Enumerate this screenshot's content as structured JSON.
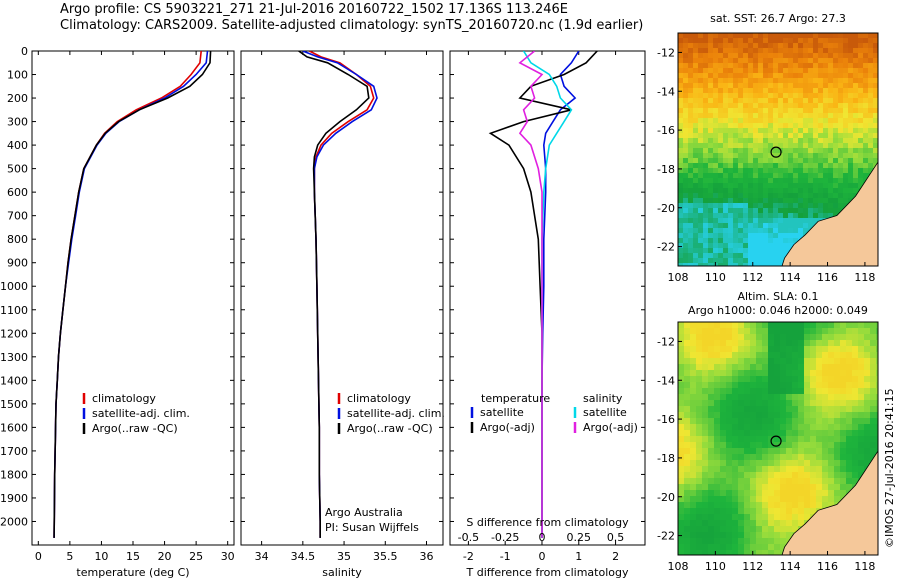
{
  "header": {
    "line1": "Argo profile: CS 5903221_271 21-Jul-2016 20160722_1502 17.136S 113.246E",
    "line2": "Climatology: CARS2009. Satellite-adjusted climatology: synTS_20160720.nc (1.9d earlier)"
  },
  "credit": {
    "ref": "Argo Australia",
    "pi": "PI: Susan Wijffels",
    "stamp": "©IMOS 27-Jul-2016 20:41:15"
  },
  "colors": {
    "climatology": "#e00000",
    "satellite": "#0010e0",
    "argo": "#000000",
    "sat_salinity": "#00d8e8",
    "argo_salinity": "#e020e0",
    "land": "#f5c89a"
  },
  "chart_data": [
    {
      "type": "line",
      "panel": "temperature",
      "xlabel": "temperature (deg C)",
      "xlim": [
        -1,
        31
      ],
      "xticks": [
        0,
        5,
        10,
        15,
        20,
        25,
        30
      ],
      "ylim": [
        2100,
        0
      ],
      "yticks": [
        0,
        100,
        200,
        300,
        400,
        500,
        600,
        700,
        800,
        900,
        1000,
        1100,
        1200,
        1300,
        1400,
        1500,
        1600,
        1700,
        1800,
        1900,
        2000
      ],
      "legend": [
        "climatology",
        "satellite-adj. clim.",
        "Argo(..raw -QC)"
      ],
      "series": [
        {
          "name": "climatology",
          "color": "#e00000",
          "x": [
            25.8,
            25.6,
            24.2,
            22.5,
            19.5,
            15.5,
            12.5,
            10.5,
            9.2,
            8.2,
            7.2,
            6.4,
            5.8,
            5.2,
            4.7,
            4.3,
            3.9,
            3.5,
            3.2,
            3.0,
            2.8,
            2.6,
            2.5
          ],
          "y": [
            0,
            50,
            100,
            150,
            200,
            250,
            300,
            350,
            400,
            450,
            500,
            600,
            700,
            800,
            900,
            1000,
            1100,
            1200,
            1300,
            1400,
            1500,
            1800,
            2070
          ]
        },
        {
          "name": "satellite-adj. clim.",
          "color": "#0010e0",
          "x": [
            26.8,
            26.6,
            25.0,
            23.0,
            20.0,
            16.0,
            12.8,
            10.7,
            9.3,
            8.3,
            7.3,
            6.5,
            5.9,
            5.3,
            4.8,
            4.3,
            3.9,
            3.5,
            3.2,
            3.0,
            2.8,
            2.6,
            2.5
          ],
          "y": [
            0,
            50,
            100,
            150,
            200,
            250,
            300,
            350,
            400,
            450,
            500,
            600,
            700,
            800,
            900,
            1000,
            1100,
            1200,
            1300,
            1400,
            1500,
            1800,
            2070
          ]
        },
        {
          "name": "Argo(..raw -QC)",
          "color": "#000000",
          "x": [
            27.3,
            27.2,
            26.0,
            24.0,
            20.5,
            16.0,
            12.7,
            10.6,
            9.2,
            8.2,
            7.2,
            6.4,
            5.8,
            5.2,
            4.7,
            4.3,
            3.9,
            3.5,
            3.2,
            3.0,
            2.8,
            2.6,
            2.5
          ],
          "y": [
            0,
            50,
            100,
            150,
            200,
            250,
            300,
            350,
            400,
            450,
            500,
            600,
            700,
            800,
            900,
            1000,
            1100,
            1200,
            1300,
            1400,
            1500,
            1800,
            2070
          ]
        }
      ]
    },
    {
      "type": "line",
      "panel": "salinity",
      "xlabel": "salinity",
      "xlim": [
        33.75,
        36.2
      ],
      "xticks": [
        34,
        34.5,
        35,
        35.5,
        36
      ],
      "ylim": [
        2100,
        0
      ],
      "legend": [
        "climatology",
        "satellite-adj. clim.",
        "Argo(..raw -QC)"
      ],
      "series": [
        {
          "name": "climatology",
          "color": "#e00000",
          "x": [
            34.58,
            34.72,
            34.95,
            35.15,
            35.32,
            35.36,
            35.28,
            35.05,
            34.85,
            34.72,
            34.66,
            34.64,
            34.64,
            34.65,
            34.66,
            34.67,
            34.68,
            34.69,
            34.7,
            34.7,
            34.71,
            34.71
          ],
          "y": [
            0,
            25,
            50,
            100,
            150,
            200,
            250,
            300,
            350,
            400,
            450,
            500,
            600,
            700,
            800,
            1000,
            1200,
            1400,
            1600,
            1800,
            2000,
            2070
          ]
        },
        {
          "name": "satellite-adj. clim.",
          "color": "#0010e0",
          "x": [
            34.5,
            34.68,
            34.92,
            35.15,
            35.36,
            35.4,
            35.33,
            35.1,
            34.9,
            34.75,
            34.67,
            34.64,
            34.64,
            34.65,
            34.66,
            34.67,
            34.68,
            34.69,
            34.7,
            34.7,
            34.71,
            34.71
          ],
          "y": [
            0,
            25,
            50,
            100,
            150,
            200,
            250,
            300,
            350,
            400,
            450,
            500,
            600,
            700,
            800,
            1000,
            1200,
            1400,
            1600,
            1800,
            2000,
            2070
          ]
        },
        {
          "name": "Argo(..raw -QC)",
          "color": "#000000",
          "x": [
            34.45,
            34.55,
            34.8,
            35.05,
            35.28,
            35.3,
            35.15,
            34.95,
            34.78,
            34.68,
            34.64,
            34.63,
            34.64,
            34.65,
            34.66,
            34.67,
            34.68,
            34.69,
            34.7,
            34.7,
            34.71,
            34.71
          ],
          "y": [
            0,
            25,
            50,
            100,
            150,
            200,
            250,
            300,
            350,
            400,
            450,
            500,
            600,
            700,
            800,
            1000,
            1200,
            1400,
            1600,
            1800,
            2000,
            2070
          ]
        }
      ]
    },
    {
      "type": "line",
      "panel": "difference",
      "xlabel": "T difference from climatology",
      "xlabel2": "S difference from climatology",
      "xlim": [
        -2.5,
        2.8
      ],
      "xticks": [
        -2,
        -1,
        0,
        1,
        2
      ],
      "sticks": [
        {
          "label": "-0.5",
          "value": -2
        },
        {
          "label": "-0.25",
          "value": -1
        },
        {
          "label": "0",
          "value": 0
        },
        {
          "label": "0.25",
          "value": 1
        },
        {
          "label": "0.5",
          "value": 2
        }
      ],
      "ylim": [
        2100,
        0
      ],
      "legend_temp_title": "temperature",
      "legend_sal_title": "salinity",
      "legend_temp": [
        "satellite",
        "Argo(-adj)"
      ],
      "legend_sal": [
        "satellite",
        "Argo(-adj)"
      ],
      "series": [
        {
          "name": "temperature satellite",
          "color": "#0010e0",
          "x": [
            1.0,
            0.8,
            0.5,
            0.6,
            0.9,
            0.5,
            0.3,
            0.1,
            0.05,
            0.1,
            0.1,
            0.05,
            0.05,
            0.02,
            0.0,
            0.0,
            0.0,
            0.0
          ],
          "y": [
            0,
            50,
            100,
            150,
            200,
            250,
            300,
            350,
            400,
            500,
            600,
            800,
            1000,
            1200,
            1400,
            1600,
            1800,
            2070
          ]
        },
        {
          "name": "temperature Argo(-adj)",
          "color": "#000000",
          "x": [
            1.5,
            1.2,
            0.6,
            -0.3,
            -0.6,
            0.8,
            -0.5,
            -1.4,
            -0.9,
            -0.5,
            -0.3,
            -0.1,
            -0.05,
            0.0,
            0.0,
            0.0,
            0.0,
            0.0
          ],
          "y": [
            0,
            50,
            100,
            150,
            200,
            250,
            300,
            350,
            400,
            500,
            600,
            800,
            1000,
            1200,
            1400,
            1600,
            1800,
            2070
          ]
        },
        {
          "name": "salinity satellite",
          "color": "#00d8e8",
          "x": [
            -0.5,
            -0.3,
            0.2,
            0.4,
            0.5,
            0.8,
            0.6,
            0.4,
            0.2,
            0.1,
            0.05,
            0.0,
            0.0,
            0.0,
            0.0,
            0.0,
            0.0,
            0.0
          ],
          "y": [
            0,
            50,
            100,
            150,
            200,
            250,
            300,
            350,
            400,
            500,
            600,
            800,
            1000,
            1200,
            1400,
            1600,
            1800,
            2070
          ]
        },
        {
          "name": "salinity Argo(-adj)",
          "color": "#e020e0",
          "x": [
            -0.2,
            -0.6,
            0.0,
            -0.3,
            -0.2,
            -0.5,
            -0.4,
            -0.6,
            -0.3,
            -0.1,
            0.0,
            0.0,
            0.0,
            0.0,
            0.0,
            0.0,
            0.0,
            0.0
          ],
          "y": [
            0,
            50,
            100,
            150,
            200,
            250,
            300,
            350,
            400,
            500,
            600,
            800,
            1000,
            1200,
            1400,
            1600,
            1800,
            2070
          ]
        }
      ]
    },
    {
      "type": "heatmap",
      "panel": "sst-map",
      "title": "sat. SST: 26.7  Argo: 27.3",
      "xlim": [
        108,
        118.7
      ],
      "xticks": [
        108,
        110,
        112,
        114,
        116,
        118
      ],
      "ylim": [
        -23,
        -11
      ],
      "yticks": [
        -12,
        -14,
        -16,
        -18,
        -20,
        -22
      ],
      "marker": {
        "lon": 113.246,
        "lat": -17.136
      }
    },
    {
      "type": "heatmap",
      "panel": "sla-map",
      "title": "Altim. SLA: 0.1",
      "title2": "Argo h1000: 0.046 h2000: 0.049",
      "xlim": [
        108,
        118.7
      ],
      "xticks": [
        108,
        110,
        112,
        114,
        116,
        118
      ],
      "ylim": [
        -23,
        -11
      ],
      "yticks": [
        -12,
        -14,
        -16,
        -18,
        -20,
        -22
      ],
      "marker": {
        "lon": 113.246,
        "lat": -17.136
      }
    }
  ]
}
